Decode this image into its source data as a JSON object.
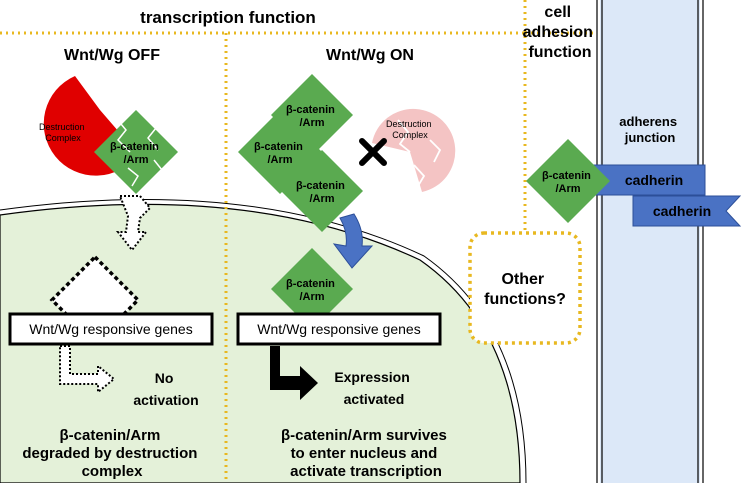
{
  "headers": {
    "transcription": "transcription function",
    "cell_adhesion": [
      "cell",
      "adhesion",
      "function"
    ],
    "wnt_off": "Wnt/Wg OFF",
    "wnt_on": "Wnt/Wg ON"
  },
  "destruction_complex": [
    "Destruction",
    "Complex"
  ],
  "beta_catenin": [
    "β-catenin",
    "/Arm"
  ],
  "beta_catenin_inline": "β-catenin/Arm",
  "responsive_genes": "Wnt/Wg responsive genes",
  "no_activation": [
    "No",
    "activation"
  ],
  "expression_activated": [
    "Expression",
    "activated"
  ],
  "other_functions": [
    "Other",
    "functions?"
  ],
  "adherens_junction": [
    "adherens",
    "junction"
  ],
  "cadherin": "cadherin",
  "captions": {
    "off": [
      "β-catenin/Arm",
      "degraded by destruction",
      "complex"
    ],
    "on": [
      "β-catenin/Arm survives",
      "to enter nucleus and",
      "activate transcription"
    ]
  },
  "colors": {
    "destruction_red": "#e00000",
    "destruction_pink": "#f4c4c4",
    "catenin_green": "#5aaa50",
    "nucleus_fill": "#e4f1d9",
    "membrane_fill": "#dce8f8",
    "cadherin_blue": "#4a72c4",
    "divider_gold": "#e8b820"
  }
}
